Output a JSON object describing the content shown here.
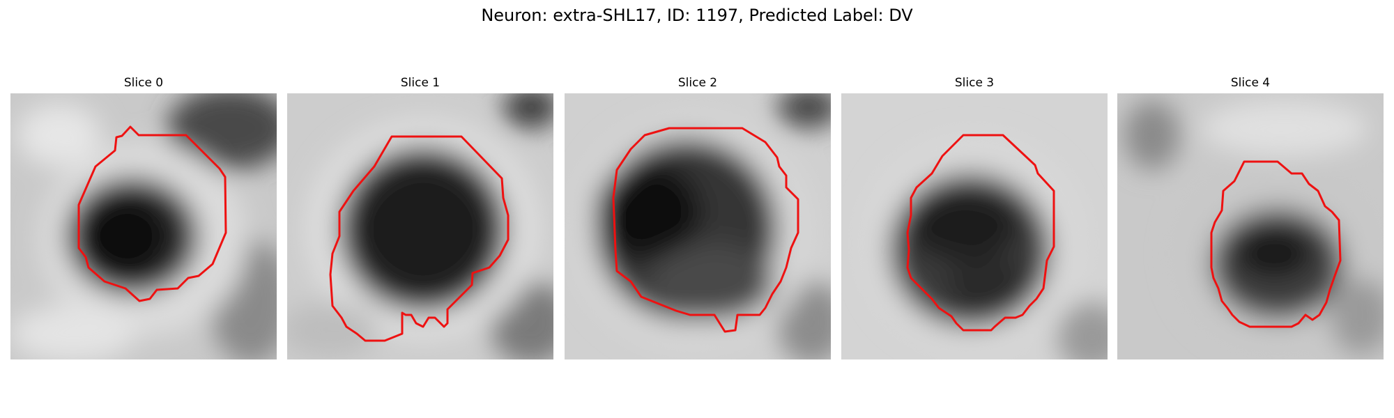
{
  "figure": {
    "title": "Neuron: extra-SHL17, ID: 1197, Predicted Label: DV"
  },
  "panels": [
    {
      "title": "Slice 0"
    },
    {
      "title": "Slice 1"
    },
    {
      "title": "Slice 2"
    },
    {
      "title": "Slice 3"
    },
    {
      "title": "Slice 4"
    }
  ],
  "colors": {
    "contour": "#ee1111",
    "background": "#ffffff"
  }
}
